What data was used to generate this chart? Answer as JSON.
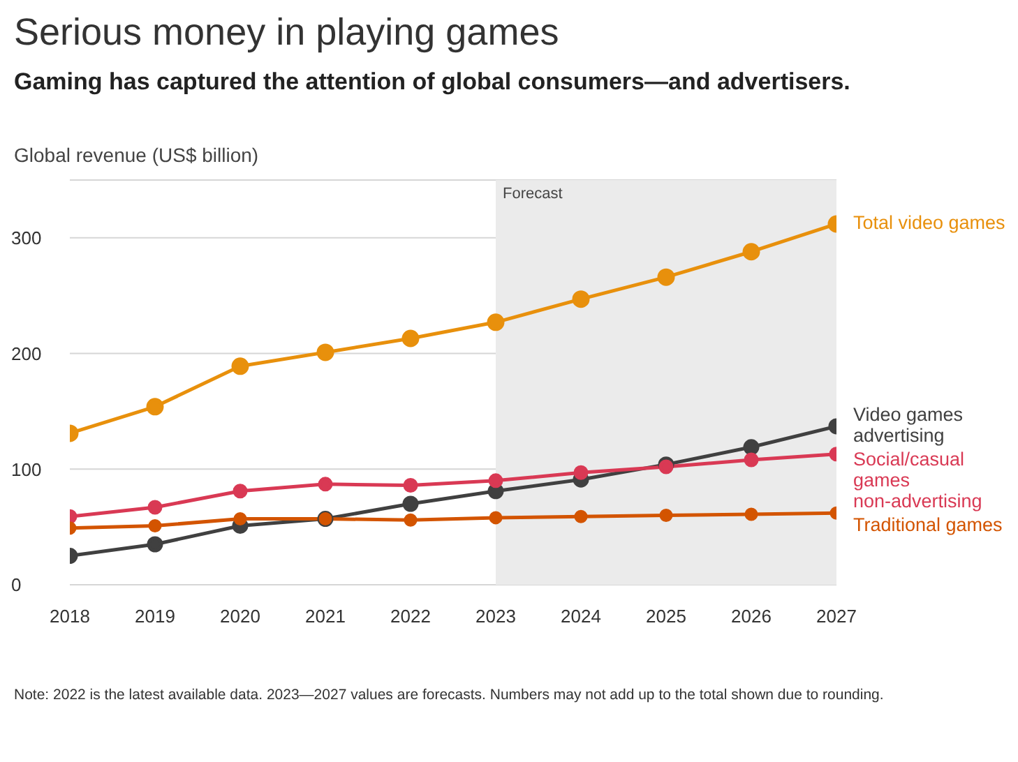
{
  "chart_data": {
    "type": "line",
    "title": "Serious money in playing games",
    "subtitle": "Gaming has captured the attention of global consumers—and advertisers.",
    "ylabel": "Global revenue (US$ billion)",
    "x": [
      2018,
      2019,
      2020,
      2021,
      2022,
      2023,
      2024,
      2025,
      2026,
      2027
    ],
    "xlim": [
      2018,
      2027
    ],
    "xticks": [
      2018,
      2019,
      2020,
      2021,
      2022,
      2023,
      2024,
      2025,
      2026,
      2027
    ],
    "ylim": [
      0,
      350
    ],
    "yticks": [
      0,
      100,
      200,
      300
    ],
    "series": [
      {
        "name": "Total video games",
        "color": "#e8900c",
        "values": [
          131,
          154,
          189,
          201,
          213,
          227,
          247,
          266,
          288,
          312
        ]
      },
      {
        "name": "Video games advertising",
        "color": "#404040",
        "values": [
          25,
          35,
          51,
          57,
          70,
          81,
          91,
          104,
          119,
          137
        ]
      },
      {
        "name": "Social/casual games non-advertising",
        "color": "#d93954",
        "values": [
          59,
          67,
          81,
          87,
          86,
          90,
          97,
          102,
          108,
          113
        ]
      },
      {
        "name": "Traditional games",
        "color": "#d35400",
        "values": [
          49,
          51,
          57,
          57,
          56,
          58,
          59,
          60,
          61,
          62
        ]
      }
    ],
    "bands": [
      {
        "axis": "x",
        "from": 2023,
        "to": 2027,
        "label": "Forecast",
        "color": "#ebebeb"
      }
    ],
    "grid": "y",
    "legend": false,
    "marker": "circle",
    "line_style": "solid",
    "annotations": [
      "Note: 2022 is the latest available data. 2023—2027 values are forecasts. Numbers may not add up to the total shown due to rounding."
    ]
  }
}
